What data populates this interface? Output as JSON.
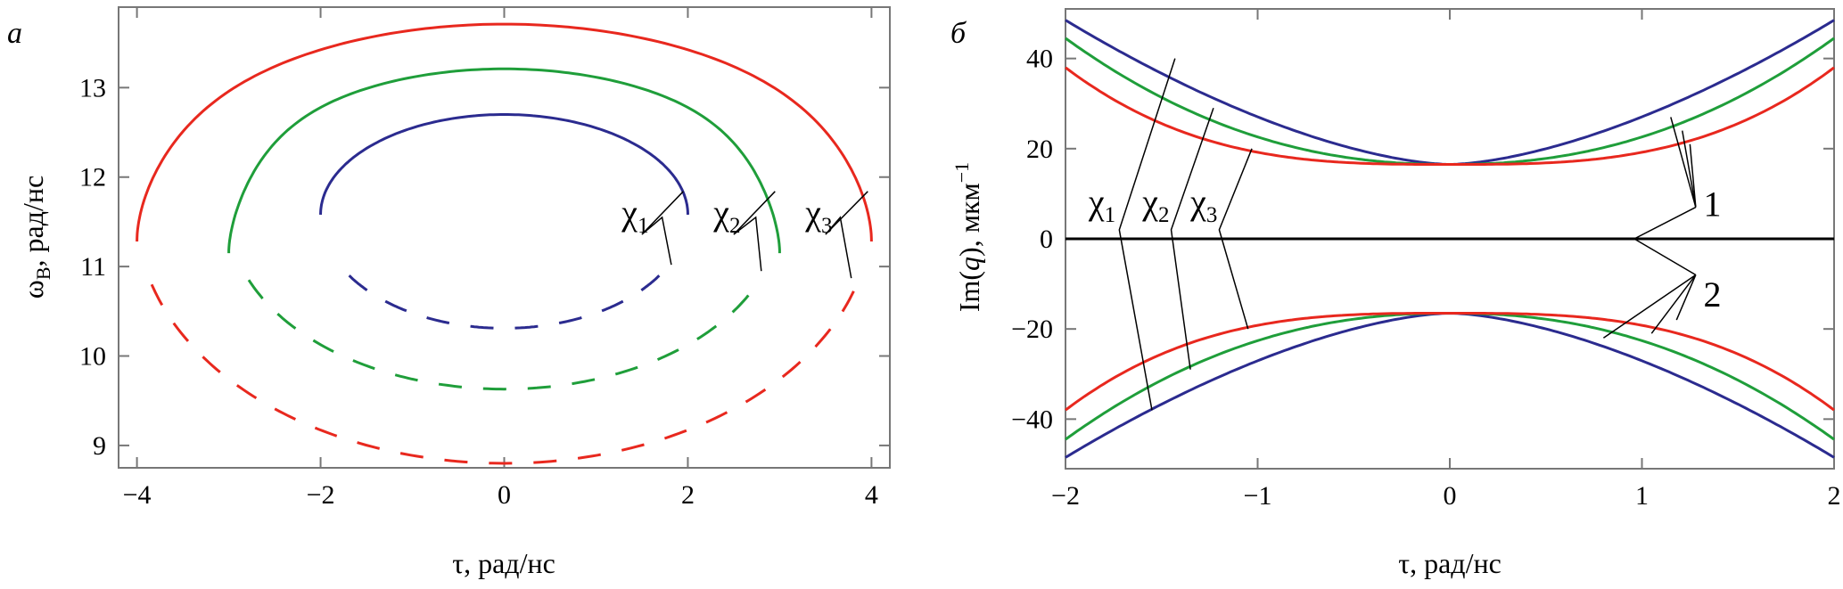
{
  "chart_data": [
    {
      "panel_letter": "а",
      "type": "line",
      "xlabel": "τ, рад/нс",
      "ylabel_main": "ω",
      "ylabel_sub": "B",
      "ylabel_rest": ", рад/нс",
      "xlim": [
        -4.2,
        4.2
      ],
      "ylim": [
        8.75,
        13.9
      ],
      "xticks": [
        -4,
        -2,
        0,
        2,
        4
      ],
      "xtick_labels": [
        "−4",
        "−2",
        "0",
        "2",
        "4"
      ],
      "yticks": [
        9,
        10,
        11,
        12,
        13
      ],
      "ytick_labels": [
        "9",
        "10",
        "11",
        "12",
        "13"
      ],
      "colors": {
        "chi1": "#2b2b8f",
        "chi2": "#1f9e3a",
        "chi3": "#e8281e"
      },
      "series": [
        {
          "key": "chi1",
          "style": "solid",
          "center_y": 11.58,
          "rx": 2.0,
          "ry_up": 1.12,
          "from": 11.58
        },
        {
          "key": "chi1",
          "style": "dashed",
          "center_y": 11.58,
          "rx": 2.0,
          "ry_down": 1.27,
          "from": 10.9
        },
        {
          "key": "chi2",
          "style": "solid",
          "center_y": 11.58,
          "rx": 3.0,
          "ry_up": 1.63,
          "from": 11.15
        },
        {
          "key": "chi2",
          "style": "dashed",
          "center_y": 11.58,
          "rx": 3.0,
          "ry_down": 1.95,
          "from": 10.85
        },
        {
          "key": "chi3",
          "style": "solid",
          "center_y": 11.58,
          "rx": 4.0,
          "ry_up": 2.13,
          "from": 11.28
        },
        {
          "key": "chi3",
          "style": "dashed",
          "center_y": 11.58,
          "rx": 4.0,
          "ry_down": 2.78,
          "from": 10.8
        }
      ],
      "labels": [
        {
          "main": "χ",
          "sub": "1",
          "x": 1.28,
          "y": 11.47
        },
        {
          "main": "χ",
          "sub": "2",
          "x": 2.28,
          "y": 11.47
        },
        {
          "main": "χ",
          "sub": "3",
          "x": 3.28,
          "y": 11.47
        }
      ]
    },
    {
      "panel_letter": "б",
      "type": "line",
      "xlabel": "τ, рад/нс",
      "ylabel_main": "Im(",
      "ylabel_q": "q",
      "ylabel_rest": "), мкм",
      "ylabel_sup": "−1",
      "xlim": [
        -2,
        2
      ],
      "ylim": [
        -51,
        51
      ],
      "xticks": [
        -2,
        -1,
        0,
        1,
        2
      ],
      "xtick_labels": [
        "−2",
        "−1",
        "0",
        "1",
        "2"
      ],
      "yticks": [
        -40,
        -20,
        0,
        20,
        40
      ],
      "ytick_labels": [
        "−40",
        "−20",
        "0",
        "20",
        "40"
      ],
      "series": [
        {
          "key": "chi1",
          "y0": 16.5,
          "y_end": 48.5,
          "shape": 2.0
        },
        {
          "key": "chi2",
          "y0": 16.5,
          "y_end": 44.5,
          "shape": 4.0
        },
        {
          "key": "chi3",
          "y0": 16.5,
          "y_end": 38.0,
          "shape": 6.0
        },
        {
          "key": "zero",
          "y0": 0,
          "y_end": 0,
          "shape": 1
        }
      ],
      "labels": [
        {
          "main": "χ",
          "sub": "1",
          "x": -1.88,
          "y": 5.5
        },
        {
          "main": "χ",
          "sub": "2",
          "x": -1.6,
          "y": 5.5
        },
        {
          "main": "χ",
          "sub": "3",
          "x": -1.35,
          "y": 5.5
        },
        {
          "main": "1",
          "x": 1.32,
          "y": 5.0
        },
        {
          "main": "2",
          "x": 1.32,
          "y": -15.0
        }
      ]
    }
  ]
}
